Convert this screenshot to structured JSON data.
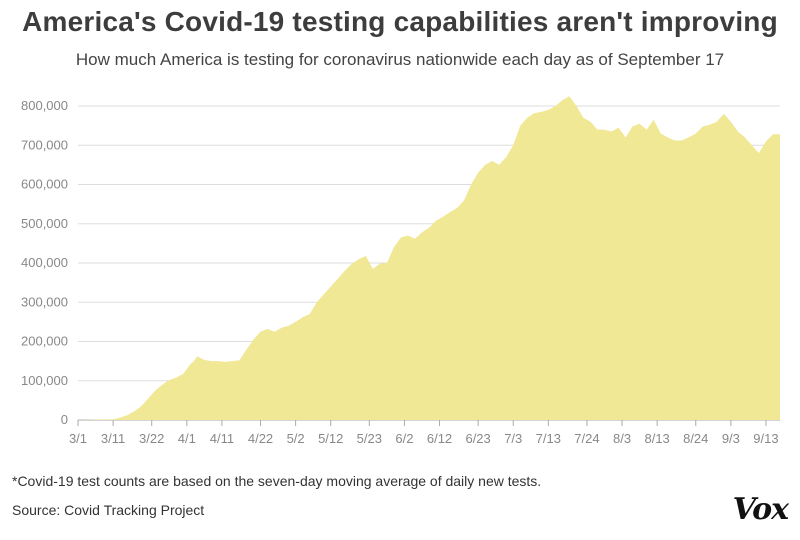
{
  "header": {
    "title": "America's Covid-19 testing capabilities aren't improving",
    "subtitle": "How much America is testing for coronavirus nationwide each day as of September 17"
  },
  "footer": {
    "note": "*Covid-19 test counts are based on the seven-day moving average of daily new tests.",
    "source": "Source: Covid Tracking Project",
    "logo": "Vox"
  },
  "colors": {
    "area": "#f0e895",
    "grid": "#dddddd",
    "baseline": "#aaaaaa"
  },
  "chart_data": {
    "type": "area",
    "title": "America's Covid-19 testing capabilities aren't improving",
    "subtitle": "How much America is testing for coronavirus nationwide each day as of September 17",
    "xlabel": "",
    "ylabel": "",
    "ylim": [
      0,
      800000
    ],
    "y_ticks": [
      0,
      100000,
      200000,
      300000,
      400000,
      500000,
      600000,
      700000,
      800000
    ],
    "y_tick_labels": [
      "0",
      "100,000",
      "200,000",
      "300,000",
      "400,000",
      "500,000",
      "600,000",
      "700,000",
      "800,000"
    ],
    "x_ticks": [
      "3/1",
      "3/11",
      "3/22",
      "4/1",
      "4/11",
      "4/22",
      "5/2",
      "5/12",
      "5/23",
      "6/2",
      "6/12",
      "6/23",
      "7/3",
      "7/13",
      "7/24",
      "8/3",
      "8/13",
      "8/24",
      "9/3",
      "9/13"
    ],
    "x_tick_index": [
      0,
      10,
      21,
      31,
      41,
      52,
      62,
      72,
      83,
      93,
      103,
      114,
      124,
      134,
      145,
      155,
      165,
      176,
      186,
      196
    ],
    "grid": true,
    "legend": "none",
    "series": [
      {
        "x": [
          0,
          10,
          12,
          14,
          16,
          18,
          20,
          22,
          24,
          26,
          28,
          30,
          32,
          33,
          34,
          36,
          38,
          40,
          42,
          44,
          46,
          48,
          50,
          52,
          54,
          56,
          58,
          60,
          62,
          64,
          66,
          68,
          70,
          72,
          74,
          76,
          78,
          80,
          82,
          84,
          86,
          88,
          90,
          92,
          94,
          96,
          98,
          100,
          102,
          104,
          106,
          108,
          110,
          112,
          114,
          116,
          118,
          120,
          122,
          124,
          126,
          128,
          130,
          132,
          134,
          136,
          138,
          140,
          142,
          144,
          146,
          148,
          150,
          152,
          154,
          156,
          158,
          160,
          162,
          164,
          166,
          168,
          170,
          172,
          174,
          176,
          178,
          180,
          182,
          184,
          186,
          188,
          190,
          192,
          194,
          196,
          198,
          200
        ],
        "values": [
          0,
          2000,
          6000,
          12000,
          22000,
          35000,
          55000,
          75000,
          90000,
          102000,
          108000,
          118000,
          142000,
          150000,
          162000,
          153000,
          150000,
          150000,
          148000,
          150000,
          152000,
          180000,
          205000,
          225000,
          232000,
          225000,
          235000,
          240000,
          250000,
          262000,
          270000,
          300000,
          320000,
          340000,
          360000,
          380000,
          398000,
          410000,
          418000,
          385000,
          398000,
          400000,
          440000,
          465000,
          470000,
          462000,
          478000,
          490000,
          508000,
          518000,
          530000,
          540000,
          560000,
          600000,
          630000,
          650000,
          660000,
          650000,
          670000,
          700000,
          750000,
          770000,
          782000,
          785000,
          790000,
          800000,
          815000,
          825000,
          800000,
          770000,
          760000,
          740000,
          740000,
          735000,
          745000,
          720000,
          748000,
          755000,
          740000,
          765000,
          730000,
          720000,
          712000,
          712000,
          720000,
          730000,
          748000,
          752000,
          760000,
          780000,
          760000,
          735000,
          720000,
          700000,
          680000,
          710000,
          728000,
          728000
        ]
      }
    ]
  }
}
